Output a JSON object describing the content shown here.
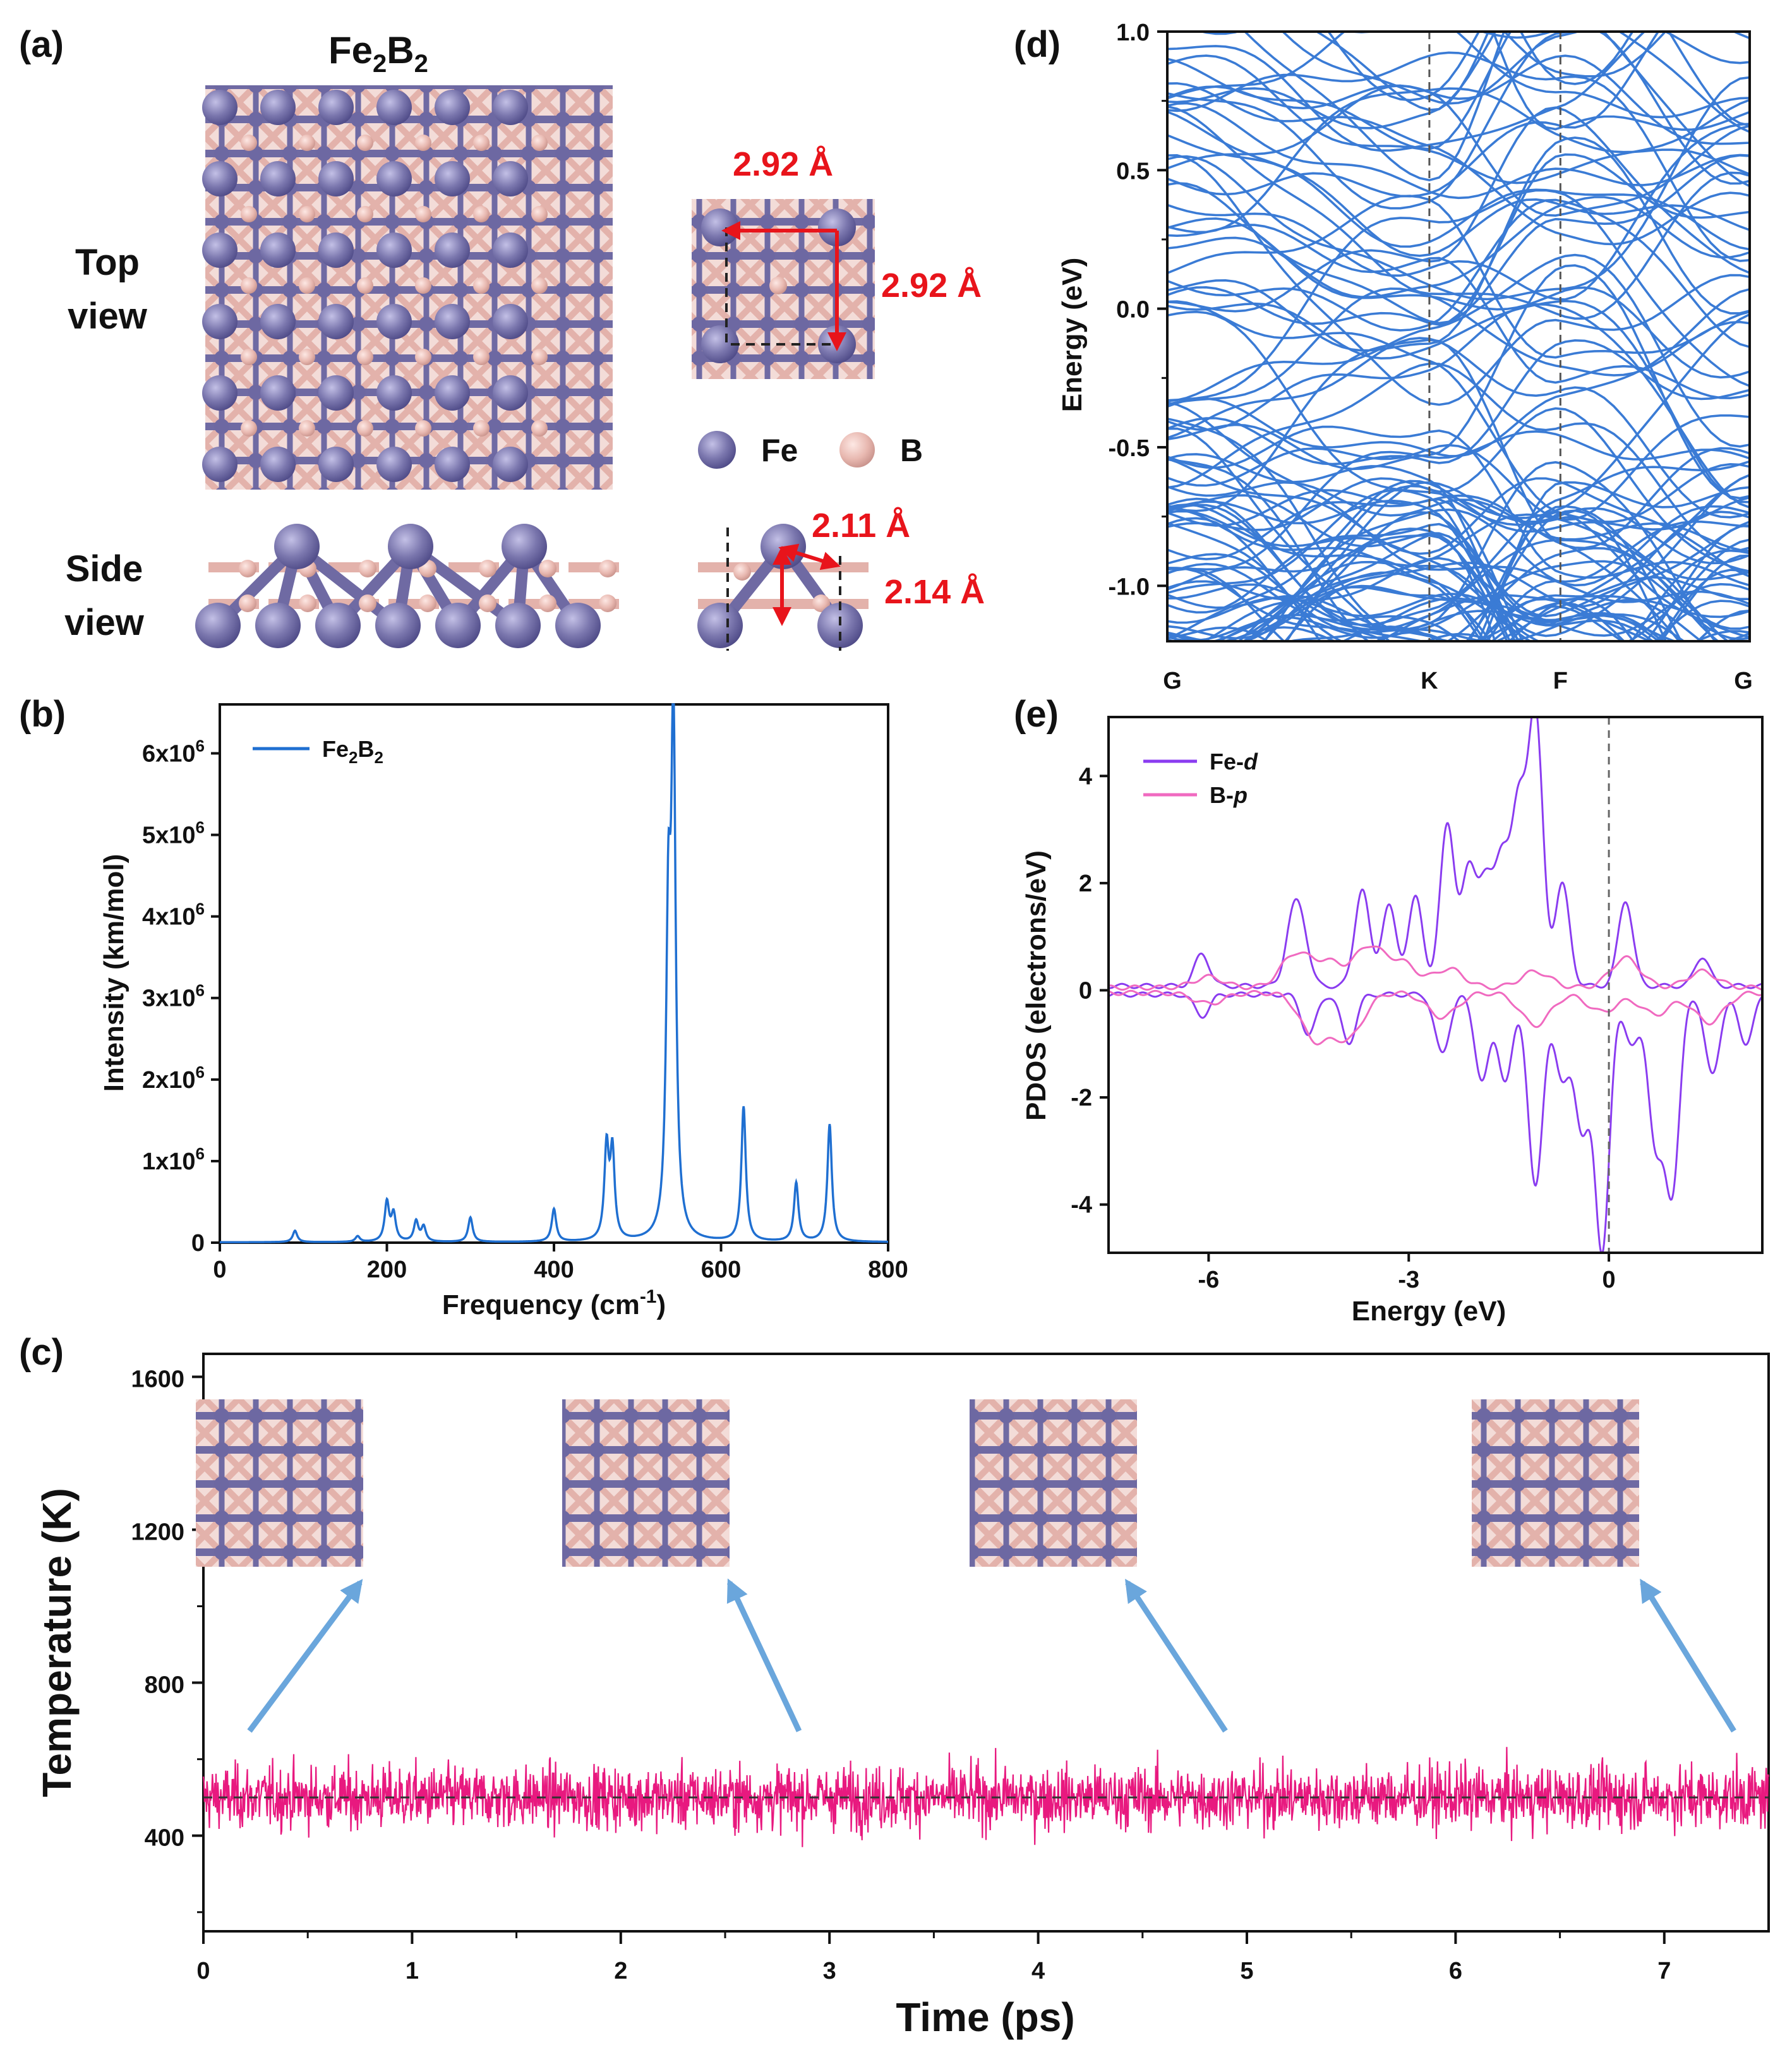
{
  "panel_labels": [
    "(a)",
    "(b)",
    "(c)",
    "(d)",
    "(e)"
  ],
  "structure": {
    "formula_main": "Fe",
    "formula_sub1": "2",
    "formula_mid": "B",
    "formula_sub2": "2",
    "top_view": [
      "Top",
      "view"
    ],
    "side_view": [
      "Side",
      "view"
    ],
    "lattice_a": "2.92 Å",
    "lattice_b": "2.92 Å",
    "bond_1": "2.11 Å",
    "bond_2": "2.14 Å",
    "legend_fe": "Fe",
    "legend_b": "B",
    "colors": {
      "fe": "#7a76ad",
      "b": "#e8b8b0",
      "arrow": "#e8141b"
    }
  },
  "chart_data": [
    {
      "panel": "(b)",
      "type": "line",
      "xlabel": "Frequency (cm",
      "xlabel_sup": "-1",
      "xlabel_end": ")",
      "ylabel": "Intensity (km/mol)",
      "xlim": [
        0,
        800
      ],
      "ylim": [
        0,
        6600000
      ],
      "xticks": [
        "0",
        "200",
        "400",
        "600",
        "800"
      ],
      "yticks": [
        {
          "base": "0",
          "exp": ""
        },
        {
          "base": "1x10",
          "exp": "6"
        },
        {
          "base": "2x10",
          "exp": "6"
        },
        {
          "base": "3x10",
          "exp": "6"
        },
        {
          "base": "4x10",
          "exp": "6"
        },
        {
          "base": "5x10",
          "exp": "6"
        },
        {
          "base": "6x10",
          "exp": "6"
        }
      ],
      "legend": {
        "name": "Fe",
        "sub1": "2",
        "mid": "B",
        "sub2": "2"
      },
      "color": "#1f6fd1",
      "peaks": [
        {
          "x": 90,
          "y": 140000
        },
        {
          "x": 165,
          "y": 70000
        },
        {
          "x": 200,
          "y": 480000
        },
        {
          "x": 208,
          "y": 330000
        },
        {
          "x": 235,
          "y": 250000
        },
        {
          "x": 244,
          "y": 180000
        },
        {
          "x": 300,
          "y": 300000
        },
        {
          "x": 400,
          "y": 400000
        },
        {
          "x": 463,
          "y": 1120000
        },
        {
          "x": 470,
          "y": 1060000
        },
        {
          "x": 537,
          "y": 3600000
        },
        {
          "x": 543,
          "y": 6150000
        },
        {
          "x": 627,
          "y": 1650000
        },
        {
          "x": 690,
          "y": 720000
        },
        {
          "x": 730,
          "y": 1440000
        }
      ]
    },
    {
      "panel": "(c)",
      "type": "line",
      "xlabel": "Time (ps)",
      "ylabel": "Temperature (K)",
      "xlim": [
        0,
        7.5
      ],
      "ylim": [
        150,
        1660
      ],
      "xticks": [
        "0",
        "1",
        "2",
        "3",
        "4",
        "5",
        "6",
        "7"
      ],
      "yticks": [
        "400",
        "800",
        "1200",
        "1600"
      ],
      "mean_temperature": 500,
      "fluctuation_range": [
        310,
        780
      ],
      "color": "#e8197f",
      "snapshot_times": [
        0.25,
        2.5,
        4.5,
        6.95
      ]
    },
    {
      "panel": "(d)",
      "type": "line",
      "ylabel": "Energy (eV)",
      "ylim": [
        -1.2,
        1.0
      ],
      "yticks": [
        "-1.0",
        "-0.5",
        "0.0",
        "0.5",
        "1.0"
      ],
      "kpoints": [
        "G",
        "K",
        "F",
        "G"
      ],
      "kpoint_positions": [
        0,
        0.45,
        0.675,
        1.0
      ],
      "color": "#3a7bd5"
    },
    {
      "panel": "(e)",
      "type": "line",
      "xlabel": "Energy (eV)",
      "ylabel": "PDOS (electrons/eV)",
      "xlim": [
        -7.5,
        2.3
      ],
      "ylim": [
        -4.9,
        5.1
      ],
      "xticks": [
        "-6",
        "-3",
        "0"
      ],
      "yticks": [
        "-4",
        "-2",
        "0",
        "2",
        "4"
      ],
      "series": [
        {
          "name": "Fe-",
          "name_italic": "d",
          "color": "#8a3cf0",
          "up_peaks": [
            [
              -6.1,
              0.6
            ],
            [
              -4.75,
              1.05
            ],
            [
              -4.6,
              0.95
            ],
            [
              -3.7,
              1.8
            ],
            [
              -3.3,
              1.5
            ],
            [
              -2.9,
              1.65
            ],
            [
              -2.42,
              3.0
            ],
            [
              -2.1,
              2.1
            ],
            [
              -1.85,
              1.85
            ],
            [
              -1.6,
              2.3
            ],
            [
              -1.35,
              3.2
            ],
            [
              -1.1,
              5.0
            ],
            [
              -0.7,
              1.9
            ],
            [
              0.25,
              1.6
            ],
            [
              1.4,
              0.55
            ]
          ],
          "down_peaks": [
            [
              -6.1,
              -0.4
            ],
            [
              -4.5,
              -0.75
            ],
            [
              -3.9,
              -0.9
            ],
            [
              -2.5,
              -1.1
            ],
            [
              -1.9,
              -1.6
            ],
            [
              -1.55,
              -1.6
            ],
            [
              -1.1,
              -3.6
            ],
            [
              -0.7,
              -1.6
            ],
            [
              -0.4,
              -2.5
            ],
            [
              -0.1,
              -4.75
            ],
            [
              0.35,
              -0.95
            ],
            [
              0.7,
              -2.7
            ],
            [
              0.95,
              -3.55
            ],
            [
              1.55,
              -1.5
            ],
            [
              2.05,
              -0.9
            ]
          ]
        },
        {
          "name": "B-",
          "name_italic": "p",
          "color": "#f06ac0",
          "up_peaks": [
            [
              -6.0,
              0.2
            ],
            [
              -4.7,
              0.62
            ],
            [
              -4.2,
              0.45
            ],
            [
              -3.6,
              0.75
            ],
            [
              -3.1,
              0.45
            ],
            [
              -2.4,
              0.35
            ],
            [
              -1.1,
              0.3
            ],
            [
              0.25,
              0.55
            ],
            [
              1.4,
              0.3
            ]
          ],
          "down_peaks": [
            [
              -6.0,
              -0.2
            ],
            [
              -4.4,
              -0.85
            ],
            [
              -3.9,
              -0.8
            ],
            [
              -2.5,
              -0.45
            ],
            [
              -1.1,
              -0.6
            ],
            [
              -0.1,
              -0.35
            ],
            [
              0.7,
              -0.4
            ],
            [
              1.5,
              -0.55
            ]
          ]
        }
      ]
    }
  ]
}
